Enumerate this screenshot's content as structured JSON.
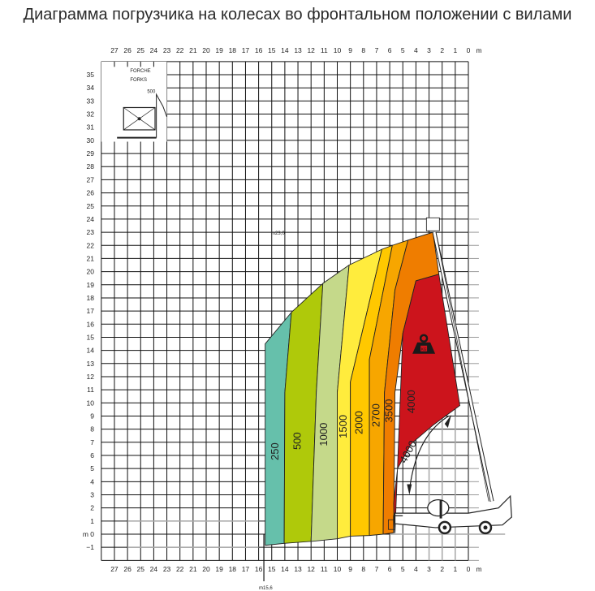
{
  "title": "Диаграмма погрузчика на колесах во фронтальном положении с вилами",
  "chart_data": {
    "type": "load-chart",
    "x_unit": "m",
    "y_unit": "m",
    "x_ticks": [
      27,
      26,
      25,
      24,
      23,
      22,
      21,
      20,
      19,
      18,
      17,
      16,
      15,
      14,
      13,
      12,
      11,
      10,
      9,
      8,
      7,
      6,
      5,
      4,
      3,
      2,
      1,
      0
    ],
    "y_ticks": [
      35,
      34,
      33,
      32,
      31,
      30,
      29,
      28,
      27,
      26,
      25,
      24,
      23,
      22,
      21,
      20,
      19,
      18,
      17,
      16,
      15,
      14,
      13,
      12,
      11,
      10,
      9,
      8,
      7,
      6,
      5,
      4,
      3,
      2,
      1,
      0,
      -1
    ],
    "x_axis_label": "m",
    "y_zero_label": "m 0",
    "xlim": [
      28,
      0
    ],
    "ylim": [
      -2,
      36
    ],
    "grid": true,
    "annotations": {
      "max_height": "m23,0",
      "max_reach": "m15,6"
    },
    "inset": {
      "line1": "FORCHE",
      "line2": "FORKS",
      "dim": "500"
    },
    "zones": [
      {
        "load": "250",
        "color": "#66c0ab",
        "label_at": [
          14.7,
          6.3
        ],
        "polygon": [
          [
            15.5,
            -0.85
          ],
          [
            15.5,
            14.5
          ],
          [
            13.5,
            16.9
          ],
          [
            14.0,
            10.8
          ],
          [
            14.05,
            -0.7
          ]
        ]
      },
      {
        "load": "500",
        "color": "#afc90a",
        "label_at": [
          13.0,
          7.1
        ],
        "polygon": [
          [
            14.05,
            -0.7
          ],
          [
            14.0,
            10.8
          ],
          [
            13.5,
            16.9
          ],
          [
            11.1,
            19.1
          ],
          [
            11.6,
            10.8
          ],
          [
            12.0,
            -0.55
          ]
        ]
      },
      {
        "load": "1000",
        "color": "#c5d98a",
        "label_at": [
          11.0,
          7.6
        ],
        "polygon": [
          [
            12.0,
            -0.55
          ],
          [
            11.6,
            10.8
          ],
          [
            11.1,
            19.1
          ],
          [
            9.1,
            20.5
          ],
          [
            10.0,
            10.8
          ],
          [
            10.0,
            -0.35
          ]
        ]
      },
      {
        "load": "1500",
        "color": "#ffec3d",
        "label_at": [
          9.5,
          8.2
        ],
        "polygon": [
          [
            10.0,
            -0.35
          ],
          [
            10.0,
            10.8
          ],
          [
            9.1,
            20.5
          ],
          [
            6.6,
            21.7
          ],
          [
            9.0,
            11.6
          ],
          [
            9.0,
            -0.15
          ]
        ]
      },
      {
        "load": "2000",
        "color": "#ffc800",
        "label_at": [
          8.3,
          8.5
        ],
        "polygon": [
          [
            9.0,
            -0.15
          ],
          [
            9.0,
            11.6
          ],
          [
            6.6,
            21.7
          ],
          [
            5.8,
            22.0
          ],
          [
            7.55,
            13.3
          ],
          [
            7.55,
            -0.1
          ]
        ]
      },
      {
        "load": "2700",
        "color": "#f7a600",
        "label_at": [
          7.0,
          9.05
        ],
        "polygon": [
          [
            7.55,
            -0.1
          ],
          [
            7.55,
            13.3
          ],
          [
            5.8,
            22.0
          ],
          [
            4.6,
            22.4
          ],
          [
            5.6,
            18.6
          ],
          [
            6.4,
            10.8
          ],
          [
            6.5,
            0.0
          ]
        ]
      },
      {
        "load": "3500",
        "color": "#ef7d00",
        "label_at": [
          6.0,
          9.4
        ],
        "polygon": [
          [
            6.5,
            0.0
          ],
          [
            6.4,
            10.8
          ],
          [
            5.6,
            18.6
          ],
          [
            4.6,
            22.4
          ],
          [
            2.7,
            23.0
          ],
          [
            2.25,
            19.8
          ],
          [
            4.0,
            19.3
          ],
          [
            5.0,
            15.3
          ],
          [
            5.6,
            10.8
          ],
          [
            5.7,
            0.1
          ]
        ]
      },
      {
        "load": "4000",
        "color": "#cc141c",
        "label_at": [
          4.3,
          10.1
        ],
        "polygon": [
          [
            4.0,
            19.3
          ],
          [
            2.25,
            19.8
          ],
          [
            0.65,
            9.8
          ],
          [
            2.7,
            8.3
          ],
          [
            4.35,
            6.9
          ],
          [
            5.4,
            5.0
          ],
          [
            5.7,
            2.35
          ],
          [
            5.6,
            0.1
          ],
          [
            5.0,
            15.3
          ]
        ]
      }
    ],
    "arc_label": {
      "text": "4000",
      "at": [
        4.55,
        6.25
      ]
    },
    "weight_icon": {
      "name": "weight-kg-icon",
      "text": "KG",
      "at": [
        3.4,
        14.3
      ]
    }
  }
}
